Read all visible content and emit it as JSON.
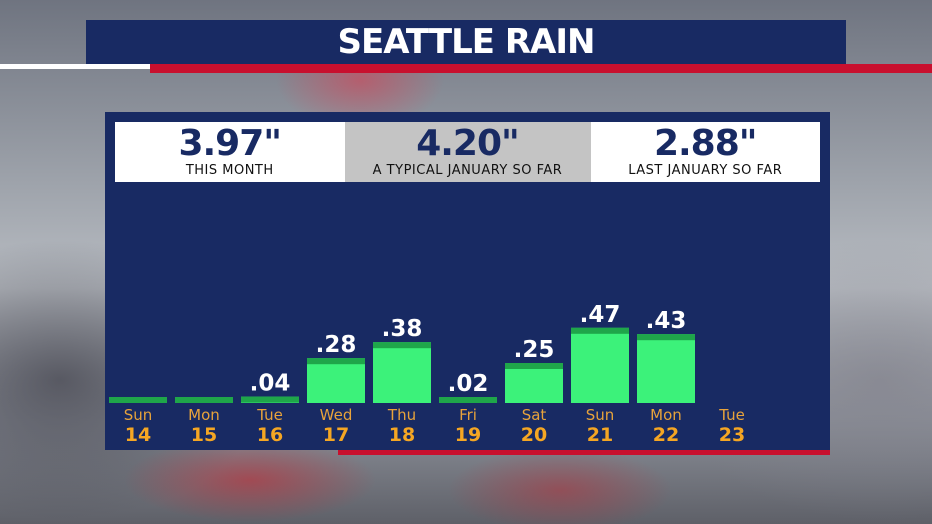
{
  "header": {
    "title": "SEATTLE RAIN"
  },
  "stats": [
    {
      "value": "3.97\"",
      "label": "THIS MONTH"
    },
    {
      "value": "4.20\"",
      "label": "A TYPICAL JANUARY SO FAR"
    },
    {
      "value": "2.88\"",
      "label": "LAST JANUARY SO FAR"
    }
  ],
  "colors": {
    "navy": "#182a63",
    "accent_red": "#c8102e",
    "bar": "#3cf27a",
    "bar_top": "#1fa64a",
    "day_label": "#e8a33b"
  },
  "chart_data": {
    "type": "bar",
    "title": "SEATTLE RAIN",
    "days": [
      "Sun",
      "Mon",
      "Tue",
      "Wed",
      "Thu",
      "Fri",
      "Sat",
      "Sun",
      "Mon",
      "Tue"
    ],
    "categories": [
      "14",
      "15",
      "16",
      "17",
      "18",
      "19",
      "20",
      "21",
      "22",
      "23"
    ],
    "values": [
      0,
      0,
      0.04,
      0.28,
      0.38,
      0.02,
      0.25,
      0.47,
      0.43,
      null
    ],
    "value_labels": [
      "",
      "",
      ".04",
      ".28",
      ".38",
      ".02",
      ".25",
      ".47",
      ".43",
      ""
    ],
    "ylim": [
      0,
      0.5
    ]
  }
}
